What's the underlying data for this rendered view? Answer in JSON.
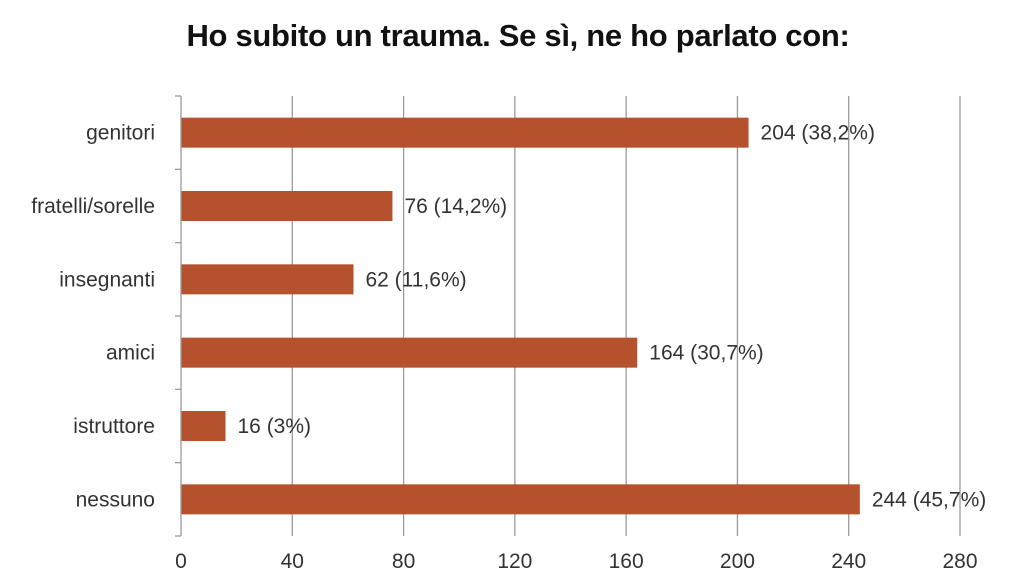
{
  "chart_data": {
    "type": "bar",
    "orientation": "horizontal",
    "title": "Ho subito un trauma. Se sì, ne ho parlato con:",
    "categories": [
      "genitori",
      "fratelli/sorelle",
      "insegnanti",
      "amici",
      "istruttore",
      "nessuno"
    ],
    "values": [
      204,
      76,
      62,
      164,
      16,
      244
    ],
    "data_labels": [
      "204 (38,2%)",
      "76 (14,2%)",
      "62 (11,6%)",
      "164 (30,7%)",
      "16 (3%)",
      "244 (45,7%)"
    ],
    "xlim": [
      0,
      280
    ],
    "xticks": [
      0,
      40,
      80,
      120,
      160,
      200,
      240,
      280
    ],
    "xtick_labels": [
      "0",
      "40",
      "80",
      "120",
      "160",
      "200",
      "240",
      "280"
    ],
    "grid": "vertical",
    "legend": "none",
    "bar_color": "#b5522d",
    "grid_color": "#9a9a9a",
    "text_color": "#333333"
  }
}
